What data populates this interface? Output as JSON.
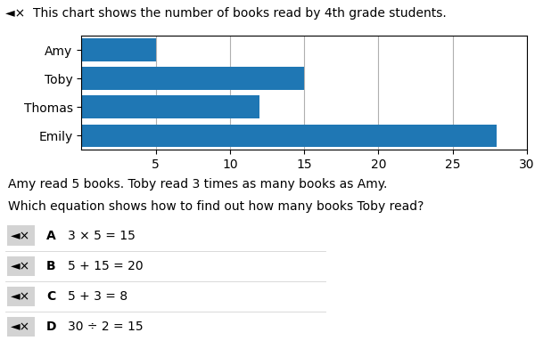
{
  "chart_data": {
    "type": "bar",
    "orientation": "horizontal",
    "title": "◄×  This chart shows the number of books read by 4th grade students.",
    "categories": [
      "Amy",
      "Toby",
      "Thomas",
      "Emily"
    ],
    "values": [
      5,
      15,
      12,
      28
    ],
    "xlim": [
      0,
      30
    ],
    "xticks": [
      5,
      10,
      15,
      20,
      25,
      30
    ],
    "grid": true,
    "annotations": [
      "Amy read 5 books. Toby read 3 times as many books as Amy.",
      "Which equation shows how to find out how many books Toby read?",
      "◄×",
      "A",
      "3 × 5 = 15",
      "◄×",
      "B",
      "5 + 15 = 20",
      "◄×",
      "C",
      "5 + 3 = 8",
      "◄×",
      "D",
      "30 ÷ 2 = 15"
    ]
  }
}
